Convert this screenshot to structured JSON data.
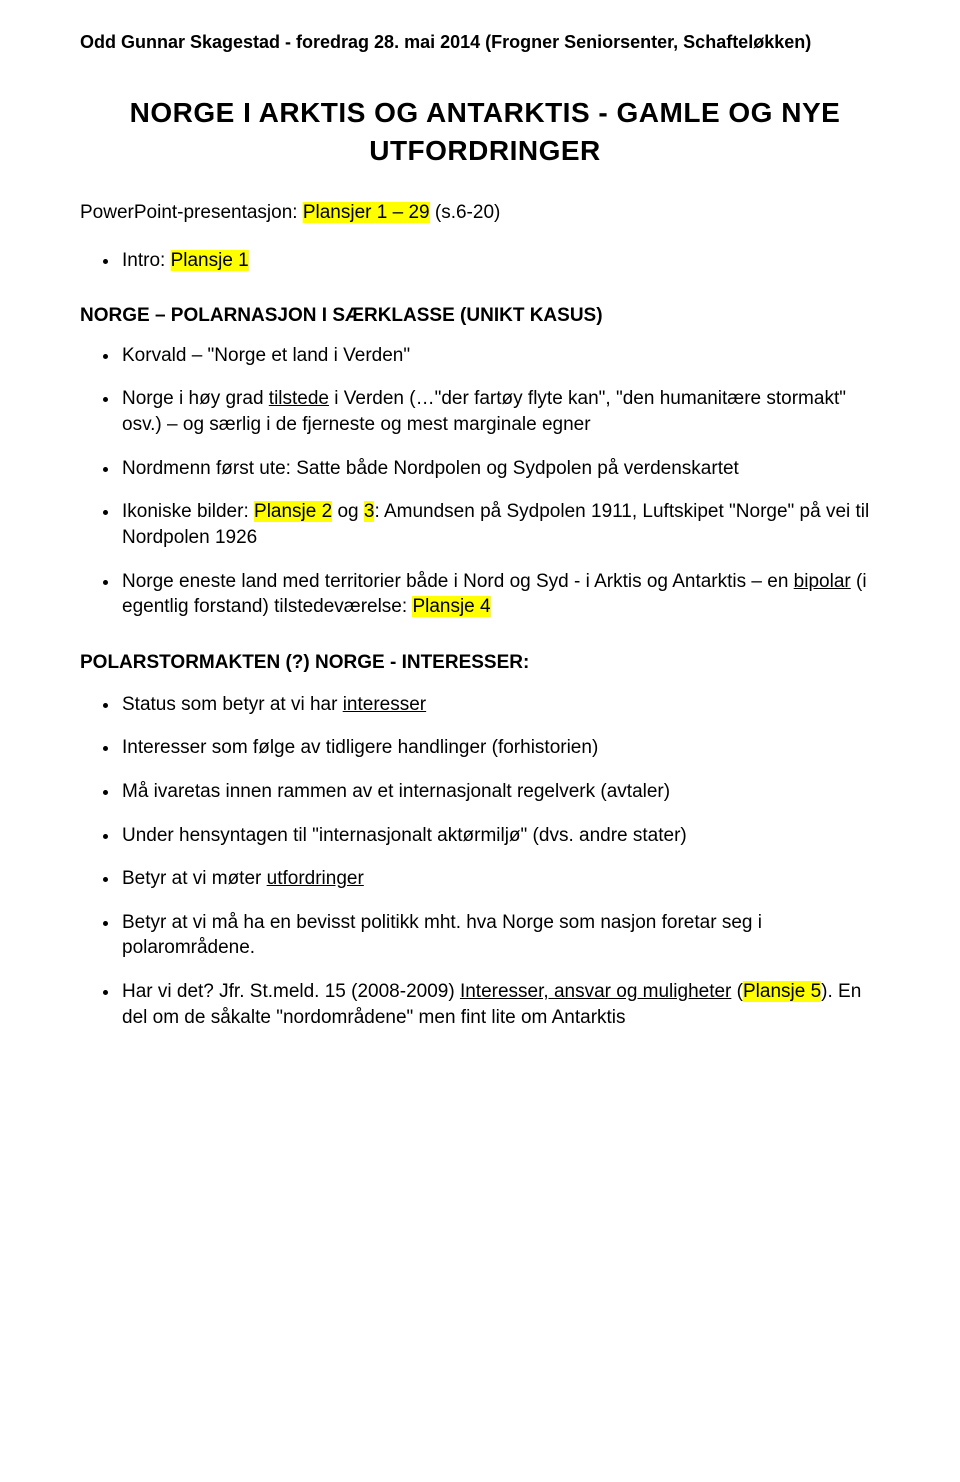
{
  "header": "Odd Gunnar Skagestad  -  foredrag 28. mai 2014 (Frogner Seniorsenter, Schafteløkken)",
  "title_line1": "NORGE  I  ARKTIS  OG  ANTARKTIS  -  GAMLE  OG  NYE",
  "title_line2": "UTFORDRINGER",
  "pp_prefix": "PowerPoint-presentasjon:  ",
  "pp_hl": "Plansjer 1 – 29",
  "pp_suffix": "  (s.6-20)",
  "intro_prefix": "Intro:  ",
  "intro_hl": "Plansje 1",
  "sec1_title": "NORGE – POLARNASJON  I  SÆRKLASSE  (UNIKT KASUS)",
  "b1": "Korvald – \"Norge et land i Verden\"",
  "b2a": "Norge i høy grad ",
  "b2u": "tilstede",
  "b2b": " i Verden (…\"der fartøy flyte kan\", \"den humanitære stormakt\" osv.) – og særlig i de fjerneste og mest marginale egner",
  "b3": "Nordmenn først ute:  Satte både Nordpolen og Sydpolen på verdenskartet",
  "b4a": "Ikoniske bilder:  ",
  "b4hl1": "Plansje 2",
  "b4mid": " og ",
  "b4hl2": "3",
  "b4b": ":  Amundsen på Sydpolen 1911, Luftskipet \"Norge\" på vei til Nordpolen 1926",
  "b5a": "Norge eneste land med territorier både i Nord og Syd - i Arktis og Antarktis – en ",
  "b5u": "bipolar",
  "b5b": " (i egentlig forstand) tilstedeværelse:  ",
  "b5hl": "Plansje 4",
  "sec2_title": "POLARSTORMAKTEN (?) NORGE  -  INTERESSER:",
  "c1a": "Status som betyr at vi har ",
  "c1u": "interesser",
  "c2": "Interesser som følge av tidligere handlinger (forhistorien)",
  "c3": "Må ivaretas innen rammen av et internasjonalt regelverk (avtaler)",
  "c4": "Under hensyntagen til \"internasjonalt aktørmiljø\"  (dvs. andre stater)",
  "c5a": "Betyr at vi møter ",
  "c5u": "utfordringer",
  "c6": "Betyr at vi må ha en bevisst politikk mht. hva Norge som nasjon foretar seg i polarområdene.",
  "c7a": "Har vi det?   Jfr. St.meld. 15 (2008-2009) ",
  "c7u": "Interesser, ansvar og muligheter",
  "c7b": " (",
  "c7hl": "Plansje 5",
  "c7c": ").  En del om de såkalte \"nordområdene\" men fint lite om Antarktis"
}
